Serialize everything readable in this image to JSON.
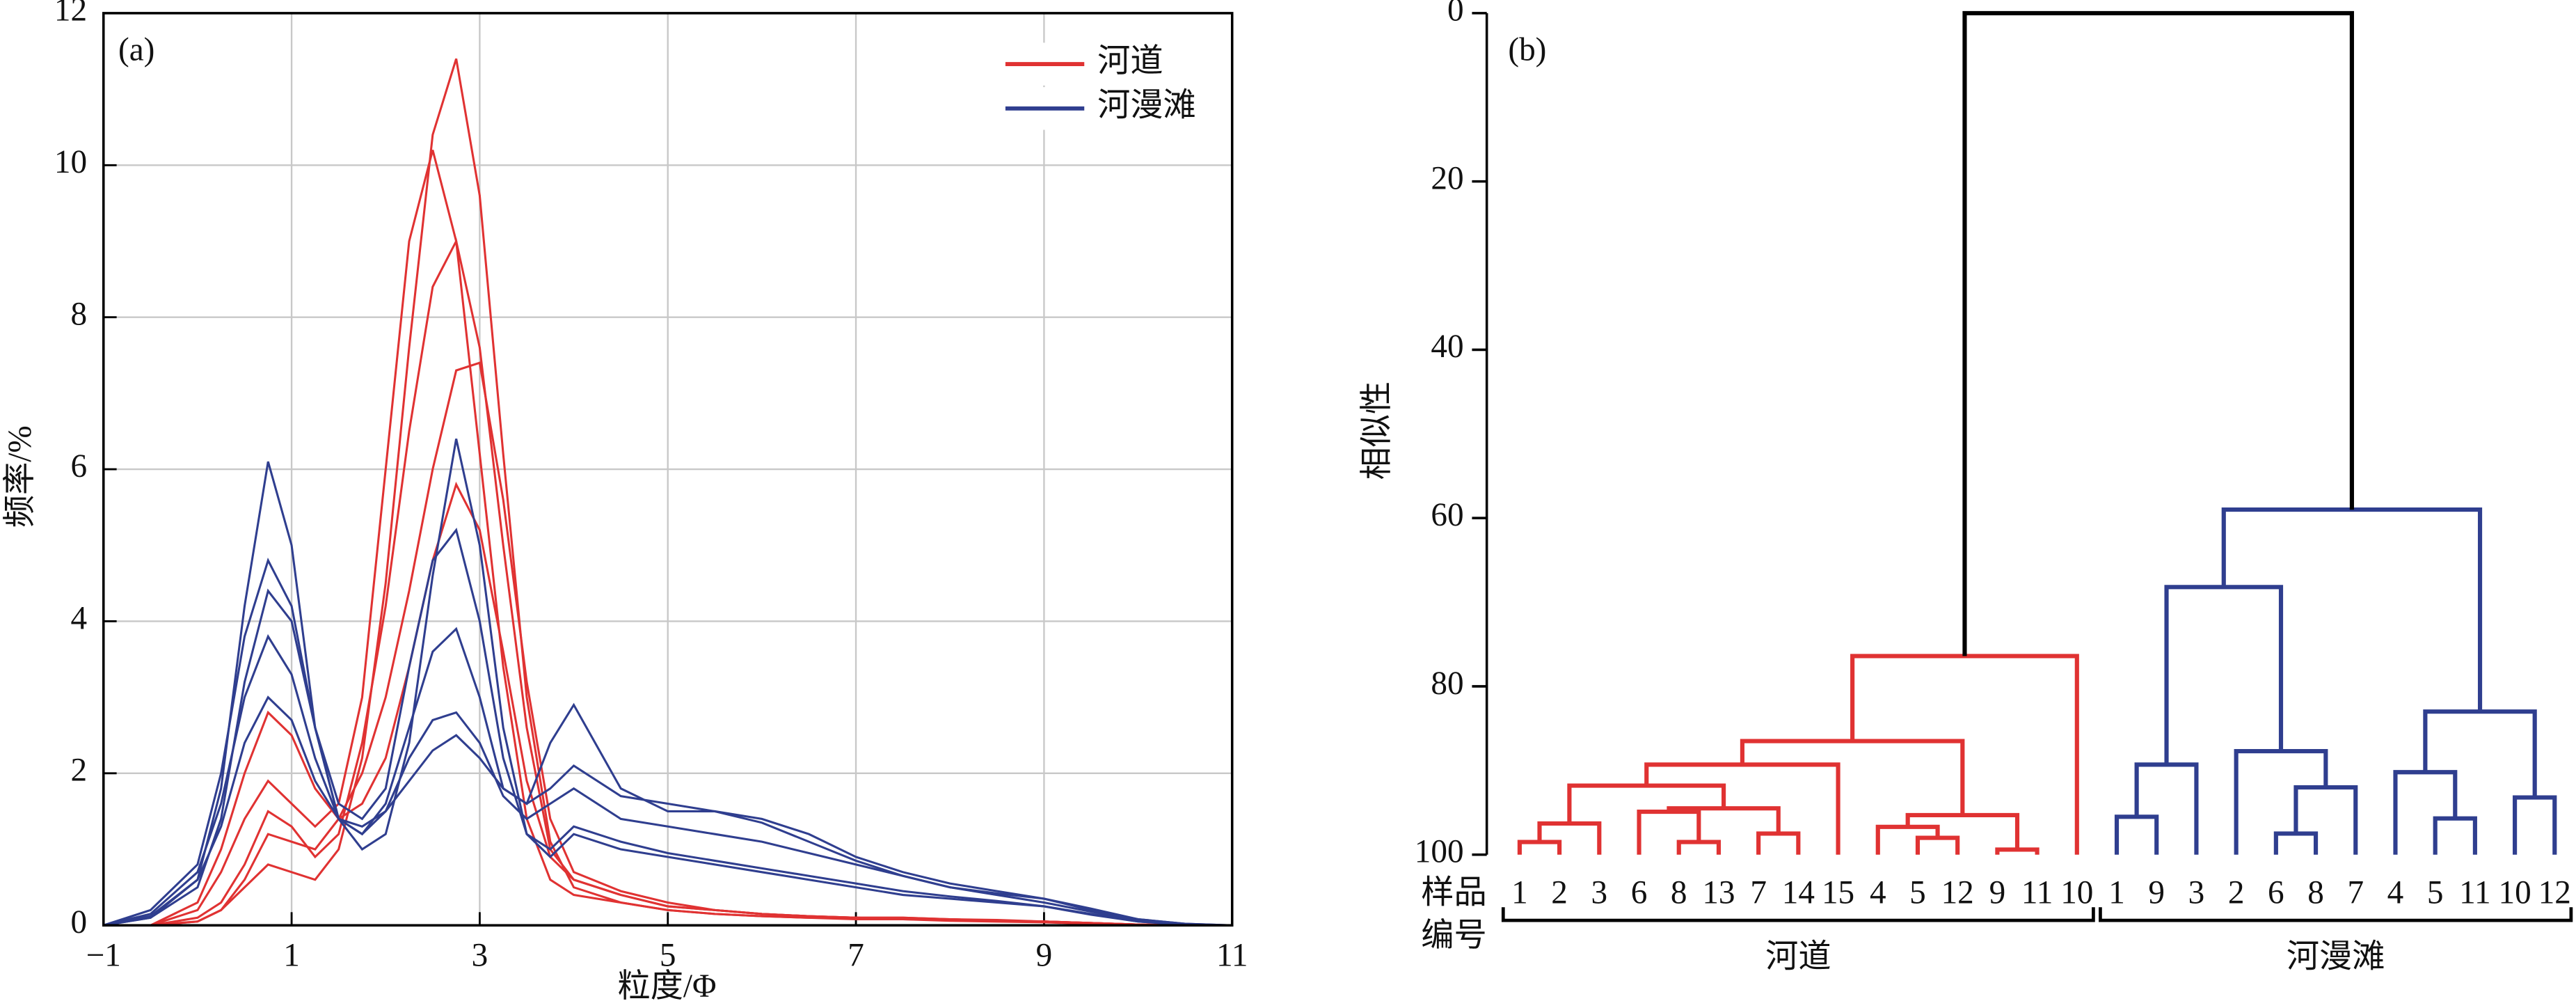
{
  "chart_data": [
    {
      "type": "line",
      "panel_label": "(a)",
      "xlabel": "粒度/Φ",
      "ylabel": "频率/%",
      "xlim": [
        -1,
        11
      ],
      "xticks": [
        {
          "value": -1,
          "label": "−1"
        },
        1,
        3,
        5,
        7,
        9,
        11
      ],
      "ylim": [
        0,
        12
      ],
      "yticks": [
        0,
        2,
        4,
        6,
        8,
        10,
        12
      ],
      "grid": true,
      "legend": "upper right",
      "x": [
        -1,
        -0.5,
        0,
        0.25,
        0.5,
        0.75,
        1,
        1.25,
        1.5,
        1.75,
        2,
        2.25,
        2.5,
        2.75,
        3,
        3.25,
        3.5,
        3.75,
        4,
        4.5,
        5,
        5.5,
        6,
        6.5,
        7,
        7.5,
        8,
        8.5,
        9,
        9.5,
        10,
        10.5,
        11
      ],
      "series": [
        {
          "name": "河道",
          "color": "#e03232",
          "curves": [
            [
              0,
              0,
              0.05,
              0.2,
              0.5,
              0.8,
              0.7,
              0.6,
              1.0,
              2.2,
              4.5,
              7.6,
              10.4,
              11.4,
              9.6,
              6.2,
              3.0,
              1.1,
              0.5,
              0.3,
              0.2,
              0.15,
              0.12,
              0.1,
              0.1,
              0.08,
              0.08,
              0.07,
              0.05,
              0.03,
              0.01,
              0,
              0
            ],
            [
              0,
              0,
              0.1,
              0.3,
              0.8,
              1.5,
              1.3,
              0.9,
              1.2,
              2.4,
              4.2,
              6.5,
              8.4,
              9.0,
              7.6,
              5.0,
              2.6,
              1.0,
              0.6,
              0.4,
              0.25,
              0.2,
              0.15,
              0.12,
              0.1,
              0.1,
              0.08,
              0.06,
              0.05,
              0.03,
              0.01,
              0,
              0
            ],
            [
              0,
              0,
              0.05,
              0.2,
              0.6,
              1.2,
              1.1,
              1.0,
              1.4,
              2.0,
              3.0,
              4.4,
              6.0,
              7.3,
              7.4,
              5.6,
              3.2,
              1.4,
              0.7,
              0.45,
              0.3,
              0.2,
              0.15,
              0.12,
              0.1,
              0.1,
              0.08,
              0.06,
              0.05,
              0.03,
              0.01,
              0,
              0
            ],
            [
              0,
              0,
              0.2,
              0.7,
              1.4,
              1.9,
              1.6,
              1.3,
              1.6,
              3.0,
              6.0,
              9.0,
              10.2,
              9.0,
              6.2,
              3.4,
              1.4,
              0.6,
              0.4,
              0.3,
              0.2,
              0.15,
              0.12,
              0.1,
              0.08,
              0.08,
              0.06,
              0.05,
              0.04,
              0.02,
              0.01,
              0,
              0
            ],
            [
              0,
              0,
              0.3,
              1.0,
              2.0,
              2.8,
              2.5,
              1.8,
              1.4,
              1.6,
              2.2,
              3.4,
              4.8,
              5.8,
              5.2,
              3.6,
              1.9,
              0.9,
              0.6,
              0.4,
              0.25,
              0.2,
              0.15,
              0.12,
              0.1,
              0.08,
              0.07,
              0.06,
              0.05,
              0.03,
              0.01,
              0,
              0
            ]
          ]
        },
        {
          "name": "河漫滩",
          "color": "#2f3e8f",
          "curves": [
            [
              0,
              0.1,
              0.6,
              1.8,
              4.2,
              6.1,
              5.0,
              2.6,
              1.4,
              1.2,
              1.6,
              2.6,
              3.6,
              3.9,
              3.0,
              1.8,
              1.6,
              2.4,
              2.9,
              1.8,
              1.5,
              1.5,
              1.4,
              1.2,
              0.9,
              0.7,
              0.55,
              0.45,
              0.35,
              0.2,
              0.08,
              0.02,
              0
            ],
            [
              0,
              0.2,
              0.8,
              2.0,
              3.8,
              4.8,
              4.2,
              2.6,
              1.4,
              1.0,
              1.2,
              2.4,
              4.6,
              6.4,
              5.0,
              2.6,
              1.2,
              0.9,
              1.2,
              1.0,
              0.9,
              0.8,
              0.7,
              0.6,
              0.5,
              0.4,
              0.35,
              0.3,
              0.25,
              0.15,
              0.05,
              0.01,
              0
            ],
            [
              0,
              0.15,
              0.7,
              1.6,
              3.0,
              3.8,
              3.3,
              2.2,
              1.4,
              1.2,
              1.5,
              2.2,
              2.7,
              2.8,
              2.4,
              1.7,
              1.4,
              1.6,
              1.8,
              1.4,
              1.3,
              1.2,
              1.1,
              0.95,
              0.8,
              0.65,
              0.5,
              0.4,
              0.3,
              0.18,
              0.06,
              0.01,
              0
            ],
            [
              0,
              0.1,
              0.5,
              1.4,
              3.2,
              4.4,
              4.0,
              2.6,
              1.6,
              1.4,
              1.8,
              3.4,
              4.8,
              5.2,
              4.0,
              2.2,
              1.2,
              1.0,
              1.3,
              1.1,
              0.95,
              0.85,
              0.75,
              0.65,
              0.55,
              0.45,
              0.38,
              0.32,
              0.25,
              0.14,
              0.05,
              0.01,
              0
            ],
            [
              0,
              0.12,
              0.6,
              1.3,
              2.4,
              3.0,
              2.7,
              1.9,
              1.4,
              1.3,
              1.5,
              1.9,
              2.3,
              2.5,
              2.2,
              1.8,
              1.6,
              1.8,
              2.1,
              1.7,
              1.6,
              1.5,
              1.35,
              1.1,
              0.85,
              0.65,
              0.5,
              0.42,
              0.35,
              0.22,
              0.08,
              0.02,
              0
            ]
          ]
        }
      ]
    },
    {
      "type": "dendrogram",
      "panel_label": "(b)",
      "ylabel": "相似性",
      "ylim": [
        0,
        100
      ],
      "y_inverted": true,
      "yticks": [
        0,
        20,
        40,
        60,
        80,
        100
      ],
      "leaf_axis_label": [
        "样品",
        "编号"
      ],
      "tree": {
        "height": 0,
        "color": "#000000",
        "children": [
          {
            "name": "河道",
            "color": "#e03232",
            "height": 76.4,
            "children": [
              {
                "height": 86.5,
                "children": [
                  {
                    "height": 89.3,
                    "children": [
                      {
                        "height": 91.8,
                        "children": [
                          {
                            "height": 96.3,
                            "children": [
                              {
                                "height": 98.5,
                                "children": [
                                  {
                                    "label": "1"
                                  },
                                  {
                                    "label": "2"
                                  }
                                ]
                              },
                              {
                                "label": "3"
                              }
                            ]
                          },
                          {
                            "height": 94.5,
                            "children": [
                              {
                                "height": 94.9,
                                "children": [
                                  {
                                    "label": "6"
                                  },
                                  {
                                    "height": 98.5,
                                    "children": [
                                      {
                                        "label": "8"
                                      },
                                      {
                                        "label": "13"
                                      }
                                    ]
                                  }
                                ]
                              },
                              {
                                "height": 97.5,
                                "children": [
                                  {
                                    "label": "7"
                                  },
                                  {
                                    "label": "14"
                                  }
                                ]
                              }
                            ]
                          }
                        ]
                      },
                      {
                        "label": "15"
                      }
                    ]
                  },
                  {
                    "height": 95.3,
                    "children": [
                      {
                        "height": 96.7,
                        "children": [
                          {
                            "label": "4"
                          },
                          {
                            "height": 98,
                            "children": [
                              {
                                "label": "5"
                              },
                              {
                                "label": "12"
                              }
                            ]
                          }
                        ]
                      },
                      {
                        "height": 99.4,
                        "children": [
                          {
                            "label": "9"
                          },
                          {
                            "label": "11"
                          }
                        ]
                      }
                    ]
                  }
                ]
              },
              {
                "label": "10"
              }
            ]
          },
          {
            "name": "河漫滩",
            "color": "#2f3e8f",
            "height": 59,
            "children": [
              {
                "height": 68.2,
                "children": [
                  {
                    "height": 89.3,
                    "children": [
                      {
                        "height": 95.5,
                        "children": [
                          {
                            "label": "1"
                          },
                          {
                            "label": "9"
                          }
                        ]
                      },
                      {
                        "label": "3"
                      }
                    ]
                  },
                  {
                    "height": 87.7,
                    "children": [
                      {
                        "label": "2"
                      },
                      {
                        "height": 92,
                        "children": [
                          {
                            "height": 97.5,
                            "children": [
                              {
                                "label": "6"
                              },
                              {
                                "label": "8"
                              }
                            ]
                          },
                          {
                            "label": "7"
                          }
                        ]
                      }
                    ]
                  }
                ]
              },
              {
                "height": 83,
                "children": [
                  {
                    "height": 90.2,
                    "children": [
                      {
                        "label": "4"
                      },
                      {
                        "height": 95.7,
                        "children": [
                          {
                            "label": "5"
                          },
                          {
                            "label": "11"
                          }
                        ]
                      }
                    ]
                  },
                  {
                    "height": 93.2,
                    "children": [
                      {
                        "label": "10"
                      },
                      {
                        "label": "12"
                      }
                    ]
                  }
                ]
              }
            ]
          }
        ]
      }
    }
  ]
}
